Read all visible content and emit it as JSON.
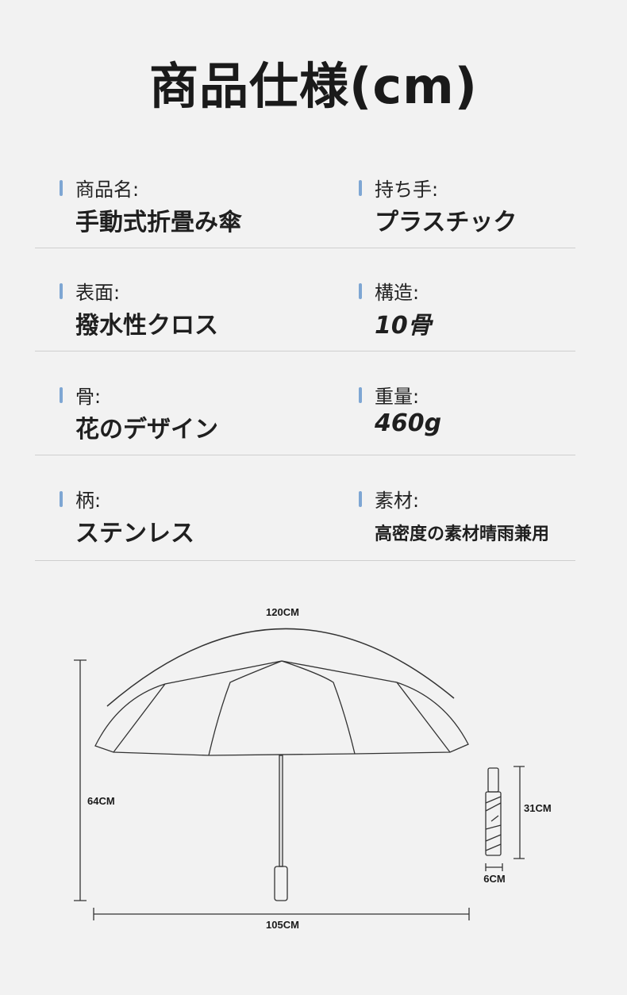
{
  "title": "商品仕様(cm)",
  "specs": [
    {
      "left": {
        "label": "商品名:",
        "value": "手動式折畳み傘"
      },
      "right": {
        "label": "持ち手:",
        "value": "プラスチック"
      }
    },
    {
      "left": {
        "label": "表面:",
        "value": "撥水性クロス"
      },
      "right": {
        "label": "構造:",
        "value": "10骨"
      }
    },
    {
      "left": {
        "label": "骨:",
        "value": "花のデザイン"
      },
      "right": {
        "label": "重量:",
        "value": "460g"
      }
    },
    {
      "left": {
        "label": "柄:",
        "value": "ステンレス"
      },
      "right": {
        "label": "素材:",
        "value": "高密度の素材晴雨兼用"
      }
    }
  ],
  "dimensions": {
    "circumference": "120CM",
    "height": "64CM",
    "width": "105CM",
    "folded_length": "31CM",
    "folded_diameter": "6CM"
  },
  "colors": {
    "accent_bar": "#7ea6d3",
    "background": "#f2f2f2"
  }
}
